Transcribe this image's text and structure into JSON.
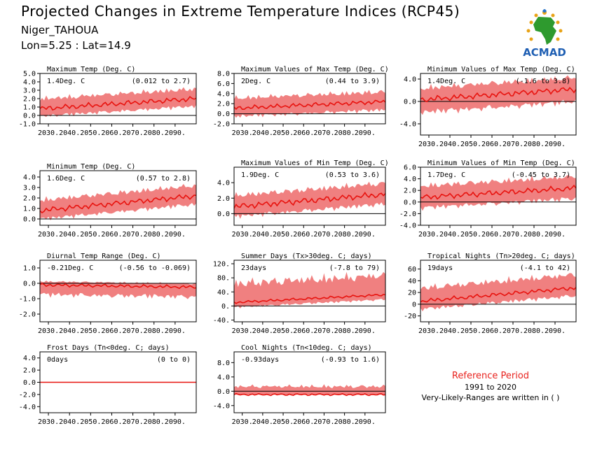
{
  "header": {
    "title": "Projected Changes in Extreme Temperature Indices (RCP45)",
    "station": "Niger_TAHOUA",
    "coords": "Lon=5.25 : Lat=14.9"
  },
  "logo": {
    "text": "ACMAD",
    "icon": "africa-map-icon"
  },
  "reference": {
    "title": "Reference Period",
    "years": "1991 to 2020",
    "note": "Very-Likely-Ranges are written in ( )"
  },
  "colors": {
    "band": "#f08080",
    "line": "#e8130f",
    "axis": "#000000"
  },
  "chart_data": [
    {
      "type": "area",
      "title": "Maximum Temp (Deg. C)",
      "value_label": "1.4Deg. C",
      "range_label": "(0.012 to 2.7)",
      "x_ticks": [
        "2030.",
        "2040.",
        "2050.",
        "2060.",
        "2070.",
        "2080.",
        "2090."
      ],
      "x_range": [
        2026,
        2100
      ],
      "ylim": [
        -1.0,
        5.0
      ],
      "y_ticks": [
        -1.0,
        0.0,
        1.0,
        2.0,
        3.0,
        4.0,
        5.0
      ],
      "y_tick_labels": [
        "-1.0",
        "0.0",
        "1.0",
        "2.0",
        "3.0",
        "4.0",
        "5.0"
      ],
      "series": [
        {
          "x_start": 2026,
          "x_end": 2100,
          "start": 0.8,
          "end": 2.0,
          "low_offset": 1.0,
          "high_offset": 1.3,
          "wiggle": 0.35
        }
      ]
    },
    {
      "type": "area",
      "title": "Maximum Values of Max Temp (Deg. C)",
      "value_label": "2Deg. C",
      "range_label": "(0.44 to 3.9)",
      "x_ticks": [
        "2030.",
        "2040.",
        "2050.",
        "2060.",
        "2070.",
        "2080.",
        "2090."
      ],
      "x_range": [
        2026,
        2100
      ],
      "ylim": [
        -2.0,
        8.0
      ],
      "y_ticks": [
        -2.0,
        0.0,
        2.0,
        4.0,
        6.0,
        8.0
      ],
      "y_tick_labels": [
        "-2.0",
        "0.0",
        "2.0",
        "4.0",
        "6.0",
        "8.0"
      ],
      "series": [
        {
          "x_start": 2026,
          "x_end": 2100,
          "start": 1.1,
          "end": 2.4,
          "low_offset": 1.8,
          "high_offset": 2.2,
          "wiggle": 0.5
        }
      ]
    },
    {
      "type": "area",
      "title": "Minimum Values of Max Temp (Deg. C)",
      "value_label": "1.4Deg. C",
      "range_label": "(-1.6 to 3.8)",
      "x_ticks": [
        "2030.",
        "2040.",
        "2050.",
        "2060.",
        "2070.",
        "2080.",
        "2090."
      ],
      "x_range": [
        2026,
        2100
      ],
      "ylim": [
        -6.0,
        5.0
      ],
      "y_ticks": [
        -4.0,
        0.0,
        4.0
      ],
      "y_tick_labels": [
        "-4.0",
        "0.0",
        "4.0"
      ],
      "series": [
        {
          "x_start": 2026,
          "x_end": 2100,
          "start": 0.3,
          "end": 2.2,
          "low_offset": 2.5,
          "high_offset": 2.3,
          "wiggle": 0.6
        }
      ]
    },
    {
      "type": "area",
      "title": "Minimum Temp (Deg. C)",
      "value_label": "1.6Deg. C",
      "range_label": "(0.57 to 2.8)",
      "x_ticks": [
        "2030.",
        "2040.",
        "2050.",
        "2060.",
        "2070.",
        "2080.",
        "2090."
      ],
      "x_range": [
        2026,
        2100
      ],
      "ylim": [
        -0.6,
        4.6
      ],
      "y_ticks": [
        0.0,
        1.0,
        2.0,
        3.0,
        4.0
      ],
      "y_tick_labels": [
        "0.0",
        "1.0",
        "2.0",
        "3.0",
        "4.0"
      ],
      "series": [
        {
          "x_start": 2026,
          "x_end": 2100,
          "start": 0.8,
          "end": 2.2,
          "low_offset": 0.9,
          "high_offset": 1.1,
          "wiggle": 0.3
        }
      ]
    },
    {
      "type": "area",
      "title": "Maximum Values of Min Temp (Deg. C)",
      "value_label": "1.9Deg. C",
      "range_label": "(0.53 to 3.6)",
      "x_ticks": [
        "2030.",
        "2040.",
        "2050.",
        "2060.",
        "2070.",
        "2080.",
        "2090."
      ],
      "x_range": [
        2026,
        2100
      ],
      "ylim": [
        -1.5,
        6.0
      ],
      "y_ticks": [
        0.0,
        2.0,
        4.0
      ],
      "y_tick_labels": [
        "0.0",
        "2.0",
        "4.0"
      ],
      "series": [
        {
          "x_start": 2026,
          "x_end": 2100,
          "start": 0.9,
          "end": 2.5,
          "low_offset": 1.4,
          "high_offset": 1.6,
          "wiggle": 0.45
        }
      ]
    },
    {
      "type": "area",
      "title": "Minimum Values of Min Temp (Deg. C)",
      "value_label": "1.7Deg. C",
      "range_label": "(-0.45 to 3.7)",
      "x_ticks": [
        "2030.",
        "2040.",
        "2050.",
        "2060.",
        "2070.",
        "2080.",
        "2090."
      ],
      "x_range": [
        2026,
        2100
      ],
      "ylim": [
        -4.0,
        6.0
      ],
      "y_ticks": [
        -4.0,
        -2.0,
        0.0,
        2.0,
        4.0,
        6.0
      ],
      "y_tick_labels": [
        "-4.0",
        "-2.0",
        "0.0",
        "2.0",
        "4.0",
        "6.0"
      ],
      "series": [
        {
          "x_start": 2026,
          "x_end": 2100,
          "start": 0.8,
          "end": 2.4,
          "low_offset": 2.0,
          "high_offset": 2.2,
          "wiggle": 0.55
        }
      ]
    },
    {
      "type": "area",
      "title": "Diurnal Temp Range (Deg. C)",
      "value_label": "-0.21Deg. C",
      "range_label": "(-0.56 to -0.069)",
      "x_ticks": [
        "2030.",
        "2040.",
        "2050.",
        "2060.",
        "2070.",
        "2080.",
        "2090."
      ],
      "x_range": [
        2026,
        2100
      ],
      "ylim": [
        -2.5,
        1.5
      ],
      "y_ticks": [
        -2.0,
        -1.0,
        0.0,
        1.0
      ],
      "y_tick_labels": [
        "-2.0",
        "-1.0",
        "0.0",
        "1.0"
      ],
      "series": [
        {
          "x_start": 2026,
          "x_end": 2100,
          "start": -0.1,
          "end": -0.25,
          "low_offset": 0.7,
          "high_offset": 0.25,
          "wiggle": 0.12
        }
      ]
    },
    {
      "type": "area",
      "title": "Summer Days (Tx>30deg. C; days)",
      "value_label": "23days",
      "range_label": "(-7.8 to 79)",
      "x_ticks": [
        "2030.",
        "2040.",
        "2050.",
        "2060.",
        "2070.",
        "2080.",
        "2090."
      ],
      "x_range": [
        2026,
        2100
      ],
      "ylim": [
        -45,
        130
      ],
      "y_ticks": [
        -40,
        0,
        40,
        80,
        120
      ],
      "y_tick_labels": [
        "-40.",
        "0.",
        "40.",
        "80.",
        "120."
      ],
      "series": [
        {
          "x_start": 2026,
          "x_end": 2100,
          "start": 10,
          "end": 32,
          "low_offset": 15,
          "high_offset": 60,
          "wiggle": 4
        }
      ]
    },
    {
      "type": "area",
      "title": "Tropical Nights (Tn>20deg. C; days)",
      "value_label": "19days",
      "range_label": "(-4.1 to 42)",
      "x_ticks": [
        "2030.",
        "2040.",
        "2050.",
        "2060.",
        "2070.",
        "2080.",
        "2090."
      ],
      "x_range": [
        2026,
        2100
      ],
      "ylim": [
        -30,
        75
      ],
      "y_ticks": [
        -20,
        0,
        20,
        40,
        60
      ],
      "y_tick_labels": [
        "-20",
        "0",
        "20",
        "40",
        "60"
      ],
      "series": [
        {
          "x_start": 2026,
          "x_end": 2100,
          "start": 5,
          "end": 28,
          "low_offset": 15,
          "high_offset": 25,
          "wiggle": 4
        }
      ]
    },
    {
      "type": "area",
      "title": "Frost Days (Tn<0deg. C; days)",
      "value_label": "0days",
      "range_label": "(0 to 0)",
      "x_ticks": [
        "2030.",
        "2040.",
        "2050.",
        "2060.",
        "2070.",
        "2080.",
        "2090."
      ],
      "x_range": [
        2026,
        2100
      ],
      "ylim": [
        -5.0,
        5.0
      ],
      "y_ticks": [
        -4.0,
        -2.0,
        0.0,
        2.0,
        4.0
      ],
      "y_tick_labels": [
        "-4.0",
        "-2.0",
        "0.0",
        "2.0",
        "4.0"
      ],
      "series": [
        {
          "x_start": 2026,
          "x_end": 2100,
          "start": 0,
          "end": 0,
          "low_offset": 0,
          "high_offset": 0,
          "wiggle": 0
        }
      ]
    },
    {
      "type": "area",
      "title": "Cool Nights (Tn<10deg. C; days)",
      "value_label": "-0.93days",
      "range_label": "(-0.93 to 1.6)",
      "x_ticks": [
        "2030.",
        "2040.",
        "2050.",
        "2060.",
        "2070.",
        "2080.",
        "2090."
      ],
      "x_range": [
        2026,
        2100
      ],
      "ylim": [
        -6.0,
        11.0
      ],
      "y_ticks": [
        -4.0,
        0.0,
        4.0,
        8.0
      ],
      "y_tick_labels": [
        "-4.0",
        "0.0",
        "4.0",
        "8.0"
      ],
      "series": [
        {
          "x_start": 2026,
          "x_end": 2100,
          "start": -0.93,
          "end": -0.93,
          "low_offset": 0,
          "high_offset": 2.5,
          "wiggle": 0.3
        }
      ]
    }
  ]
}
